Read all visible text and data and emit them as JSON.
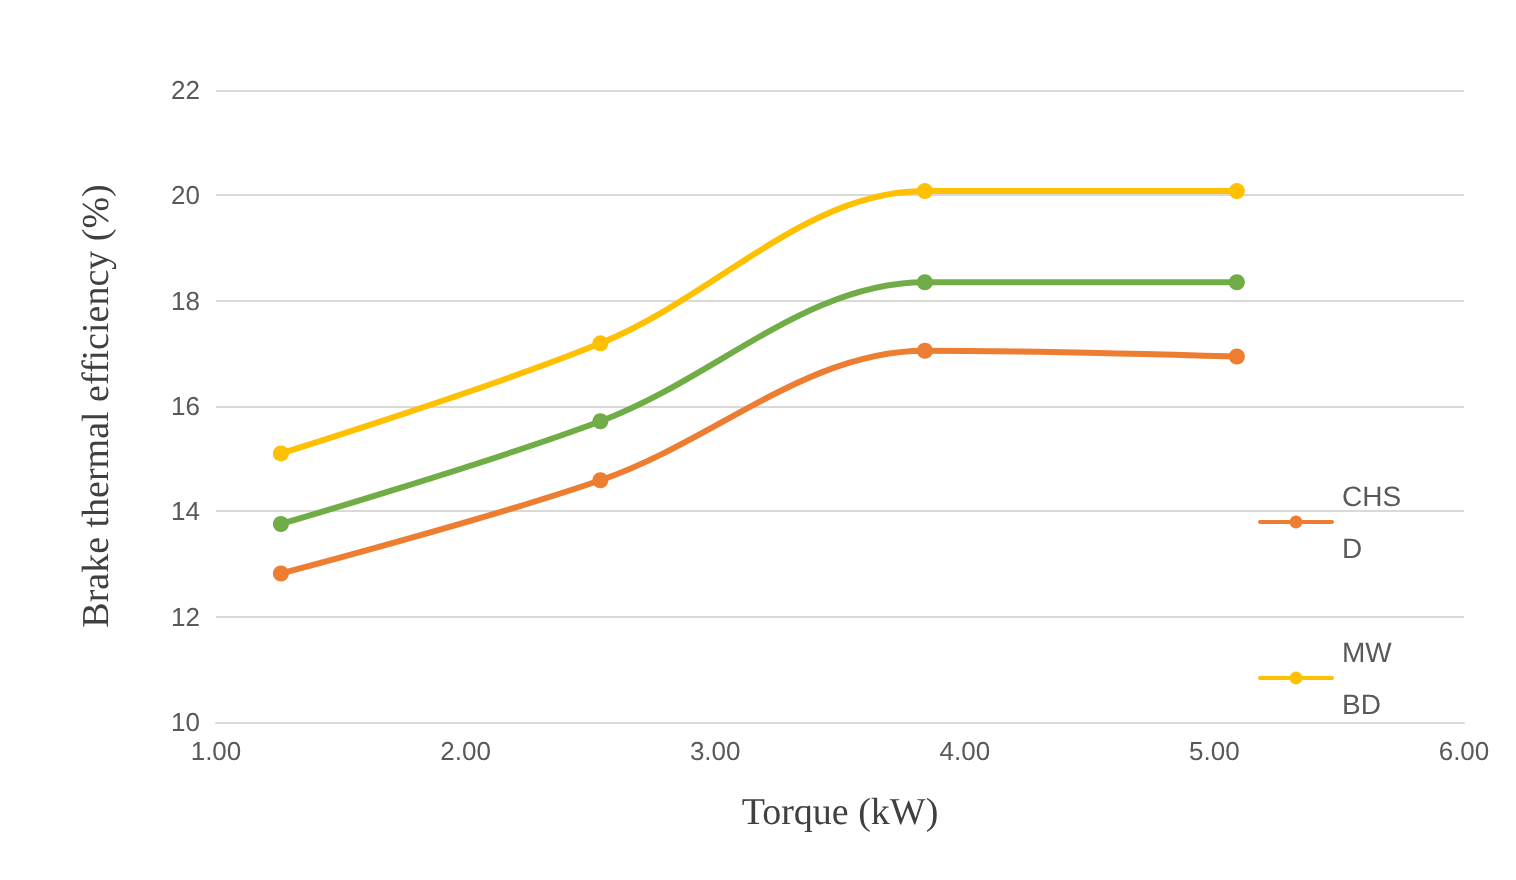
{
  "chart_data": {
    "type": "line",
    "xlabel": "Torque (kW)",
    "ylabel": "Brake thermal efficiency (%)",
    "x": [
      1.26,
      2.54,
      3.84,
      5.09
    ],
    "series": [
      {
        "name": "CHSD",
        "color": "#ed7d31",
        "values": [
          12.82,
          14.59,
          17.05,
          16.94
        ]
      },
      {
        "color": "#70ad47",
        "values": [
          13.76,
          15.71,
          18.35,
          18.35
        ]
      },
      {
        "name": "MWBD",
        "color": "#ffc000",
        "values": [
          15.1,
          17.19,
          20.08,
          20.08
        ]
      }
    ],
    "xlim": [
      1,
      6
    ],
    "xticks": [
      {
        "value": 1,
        "label": "1.00"
      },
      {
        "value": 2,
        "label": "2.00"
      },
      {
        "value": 3,
        "label": "3.00"
      },
      {
        "value": 4,
        "label": "4.00"
      },
      {
        "value": 5,
        "label": "5.00"
      },
      {
        "value": 6,
        "label": "6.00"
      }
    ],
    "ylim": [
      10,
      22
    ],
    "yticks": [
      10,
      12,
      14,
      16,
      18,
      20,
      22
    ],
    "grid": "y",
    "legend": "right",
    "marker": "circle",
    "line_style": "solid"
  }
}
